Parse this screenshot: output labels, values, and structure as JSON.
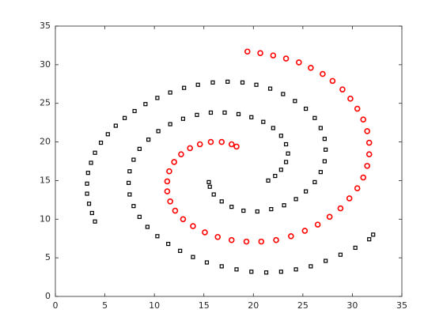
{
  "chart_data": {
    "type": "scatter",
    "xlim": [
      0,
      35
    ],
    "ylim": [
      0,
      35
    ],
    "xticks": [
      0,
      5,
      10,
      15,
      20,
      25,
      30,
      35
    ],
    "yticks": [
      0,
      5,
      10,
      15,
      20,
      25,
      30,
      35
    ],
    "grid": false,
    "series": [
      {
        "color": "#000000",
        "marker": "square",
        "x": [
          4,
          3.7,
          3.4,
          3.2,
          3.2,
          3.3,
          3.6,
          4,
          4.6,
          5.3,
          6.1,
          7,
          8,
          9.1,
          10.3,
          11.6,
          13,
          14.4,
          15.9,
          17.4,
          18.9,
          20.3,
          21.7,
          23,
          24.2,
          25.3,
          26.2,
          26.8,
          27.2,
          27.3,
          27.2,
          26.8,
          26.2,
          25.3,
          24.3,
          23.1,
          21.8,
          20.4,
          19,
          17.8,
          16.8,
          16,
          15.6,
          15.5,
          21.5,
          22.2,
          22.8,
          23.3,
          23.5,
          23.3,
          22.8,
          22,
          21,
          19.8,
          18.5,
          17.1,
          15.7,
          14.3,
          12.9,
          11.6,
          10.4,
          9.4,
          8.5,
          7.9,
          7.5,
          7.4,
          7.5,
          7.9,
          8.5,
          9.3,
          10.3,
          11.4,
          12.6,
          13.9,
          15.3,
          16.8,
          18.3,
          19.8,
          21.3,
          22.8,
          24.3,
          25.8,
          27.3,
          28.8,
          30.3,
          31.7,
          32.1
        ],
        "values": [
          9.7,
          10.8,
          12,
          13.3,
          14.6,
          16,
          17.3,
          18.6,
          19.9,
          21,
          22.1,
          23.1,
          24,
          24.9,
          25.7,
          26.4,
          27,
          27.4,
          27.7,
          27.8,
          27.7,
          27.4,
          26.9,
          26.2,
          25.3,
          24.3,
          23.1,
          21.8,
          20.4,
          19,
          17.5,
          16.1,
          14.8,
          13.6,
          12.6,
          11.8,
          11.3,
          11,
          11.1,
          11.6,
          12.3,
          13.2,
          14.2,
          14.8,
          15,
          15.6,
          16.4,
          17.4,
          18.5,
          19.7,
          20.8,
          21.8,
          22.6,
          23.2,
          23.6,
          23.8,
          23.8,
          23.5,
          23,
          22.3,
          21.4,
          20.3,
          19.1,
          17.7,
          16.2,
          14.7,
          13.2,
          11.7,
          10.3,
          9,
          7.8,
          6.8,
          5.9,
          5.1,
          4.4,
          3.9,
          3.5,
          3.2,
          3.1,
          3.2,
          3.5,
          3.9,
          4.6,
          5.4,
          6.3,
          7.4,
          8
        ]
      },
      {
        "color": "#ff0000",
        "marker": "circle",
        "x": [
          19.4,
          20.7,
          22,
          23.3,
          24.6,
          25.8,
          27,
          28,
          29,
          29.8,
          30.5,
          31.1,
          31.5,
          31.7,
          31.7,
          31.5,
          31.1,
          30.5,
          29.7,
          28.8,
          27.7,
          26.5,
          25.2,
          23.8,
          22.3,
          20.8,
          19.3,
          17.8,
          16.4,
          15.1,
          13.9,
          12.9,
          12.1,
          11.6,
          11.3,
          11.3,
          11.5,
          12,
          12.7,
          13.6,
          14.6,
          15.7,
          16.8,
          17.8,
          18.3
        ],
        "values": [
          31.7,
          31.5,
          31.2,
          30.8,
          30.3,
          29.6,
          28.8,
          27.9,
          26.8,
          25.6,
          24.3,
          22.9,
          21.4,
          19.9,
          18.4,
          16.9,
          15.4,
          14,
          12.7,
          11.4,
          10.3,
          9.3,
          8.5,
          7.8,
          7.3,
          7.1,
          7.1,
          7.3,
          7.7,
          8.3,
          9.1,
          10,
          11.1,
          12.3,
          13.6,
          14.9,
          16.2,
          17.4,
          18.4,
          19.2,
          19.7,
          20,
          20,
          19.7,
          19.4
        ]
      }
    ]
  }
}
